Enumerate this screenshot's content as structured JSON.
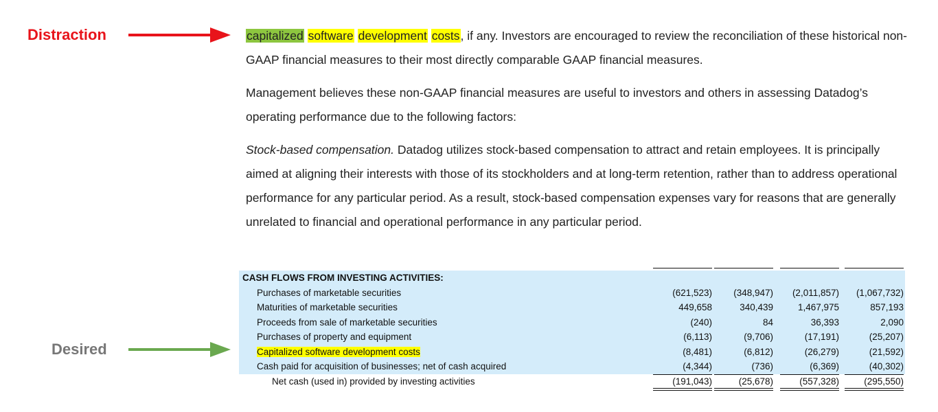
{
  "labels": {
    "distraction": "Distraction",
    "desired": "Desired"
  },
  "paragraphs": [
    {
      "highlights": [
        {
          "text": "capitalized",
          "color": "#8dc63f"
        },
        {
          "text": "software",
          "color": "#ffff00"
        },
        {
          "text": "development",
          "color": "#ffff00"
        },
        {
          "text": "costs",
          "color": "#ffff00"
        }
      ],
      "text": ", if any. Investors are encouraged to review the reconciliation of these historical non-GAAP financial measures to their most directly comparable GAAP financial measures."
    },
    {
      "text": "Management believes these non-GAAP financial measures are useful to investors and others in assessing Datadog’s operating performance due to the following factors:"
    },
    {
      "lead": "Stock-based compensation.",
      "text": " Datadog utilizes stock-based compensation to attract and retain employees. It is principally aimed at aligning their interests with those of its stockholders and at long-term retention, rather than to address operational performance for any particular period. As a result, stock-based compensation expenses vary for reasons that are generally unrelated to financial and operational performance in any particular period."
    }
  ],
  "table": {
    "heading": "CASH FLOWS FROM INVESTING ACTIVITIES:",
    "row_color": "#d4ecfa",
    "highlight_color": "#ffff00",
    "rows": [
      {
        "label": "Purchases of marketable securities",
        "values": [
          "(621,523)",
          "(348,947)",
          "(2,011,857)",
          "(1,067,732)"
        ]
      },
      {
        "label": "Maturities of marketable securities",
        "values": [
          "449,658",
          "340,439",
          "1,467,975",
          "857,193"
        ]
      },
      {
        "label": "Proceeds from sale of marketable securities",
        "values": [
          "(240)",
          "84",
          "36,393",
          "2,090"
        ]
      },
      {
        "label": "Purchases of property and equipment",
        "values": [
          "(6,113)",
          "(9,706)",
          "(17,191)",
          "(25,207)"
        ]
      },
      {
        "label": "Capitalized software development costs",
        "highlight": true,
        "values": [
          "(8,481)",
          "(6,812)",
          "(26,279)",
          "(21,592)"
        ]
      },
      {
        "label": "Cash paid for acquisition of businesses; net of cash acquired",
        "values": [
          "(4,344)",
          "(736)",
          "(6,369)",
          "(40,302)"
        ]
      },
      {
        "label": "Net cash (used in) provided by investing activities",
        "total": true,
        "values": [
          "(191,043)",
          "(25,678)",
          "(557,328)",
          "(295,550)"
        ]
      }
    ]
  }
}
